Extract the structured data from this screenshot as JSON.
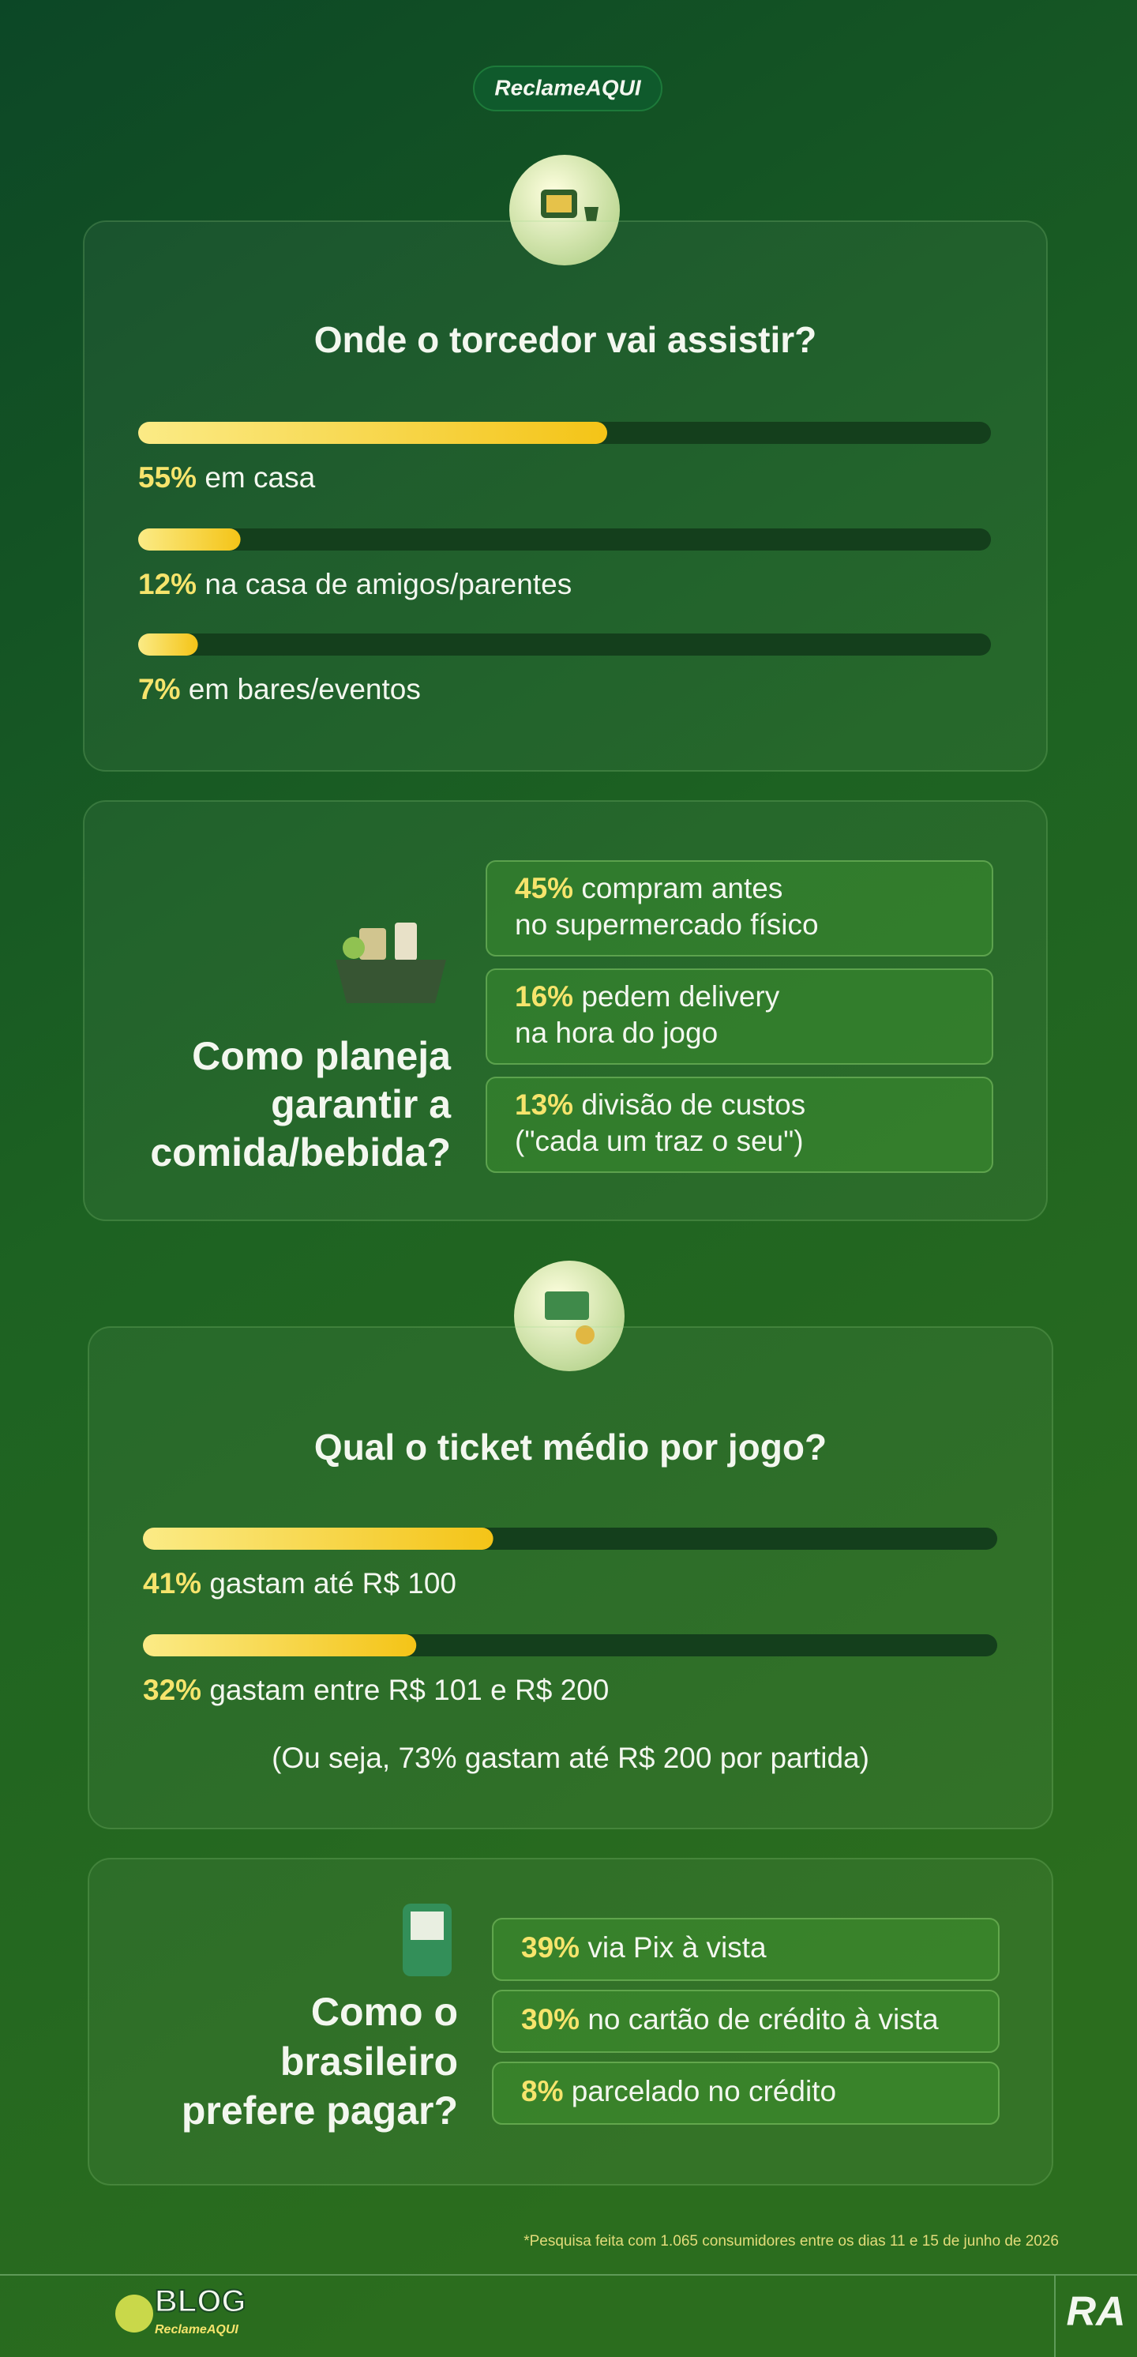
{
  "header": {
    "logo": "ReclameAQUI"
  },
  "sections": [
    {
      "title": "Onde o torcedor vai assistir?",
      "bars": [
        {
          "value": 55,
          "value_label": "55%",
          "text": "em casa"
        },
        {
          "value": 12,
          "value_label": "12%",
          "text": "na casa de amigos/parentes"
        },
        {
          "value": 7,
          "value_label": "7%",
          "text": "em bares/eventos"
        }
      ]
    },
    {
      "title_lines": [
        "Como planeja",
        "garantir a",
        "comida/bebida?"
      ],
      "items": [
        {
          "value_label": "45%",
          "lines": [
            "compram antes",
            "no supermercado físico"
          ]
        },
        {
          "value_label": "16%",
          "lines": [
            "pedem delivery",
            "na hora do jogo"
          ]
        },
        {
          "value_label": "13%",
          "lines": [
            "divisão de custos",
            "(\"cada um traz o seu\")"
          ]
        }
      ]
    },
    {
      "title": "Qual o ticket médio por jogo?",
      "bars": [
        {
          "value": 41,
          "value_label": "41%",
          "text": "gastam até R$ 100"
        },
        {
          "value": 32,
          "value_label": "32%",
          "text": "gastam entre R$ 101 e R$ 200"
        }
      ],
      "note": "(Ou seja, 73% gastam até R$ 200 por partida)"
    },
    {
      "title_lines": [
        "Como o",
        "brasileiro",
        "prefere pagar?"
      ],
      "items": [
        {
          "value_label": "39%",
          "lines": [
            "via Pix à vista"
          ]
        },
        {
          "value_label": "30%",
          "lines": [
            "no cartão de crédito à vista"
          ]
        },
        {
          "value_label": "8%",
          "lines": [
            "parcelado no crédito"
          ]
        }
      ]
    }
  ],
  "footnote": "*Pesquisa feita com 1.065 consumidores entre os dias 11 e 15 de junho de 2026",
  "footer": {
    "blog_logo": "BLOG",
    "blog_sub": "ReclameAQUI",
    "brand": "RA"
  }
}
